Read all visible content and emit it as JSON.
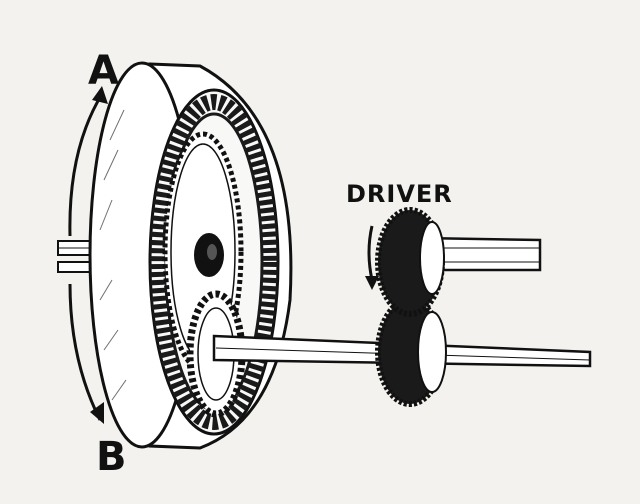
{
  "labels": {
    "a": "A",
    "b": "B",
    "driver": "DRIVER"
  },
  "colors": {
    "ink": "#111111",
    "paper": "#f3f2ee",
    "drum_face": "#ffffff",
    "gear_dark": "#1a1a1a"
  }
}
